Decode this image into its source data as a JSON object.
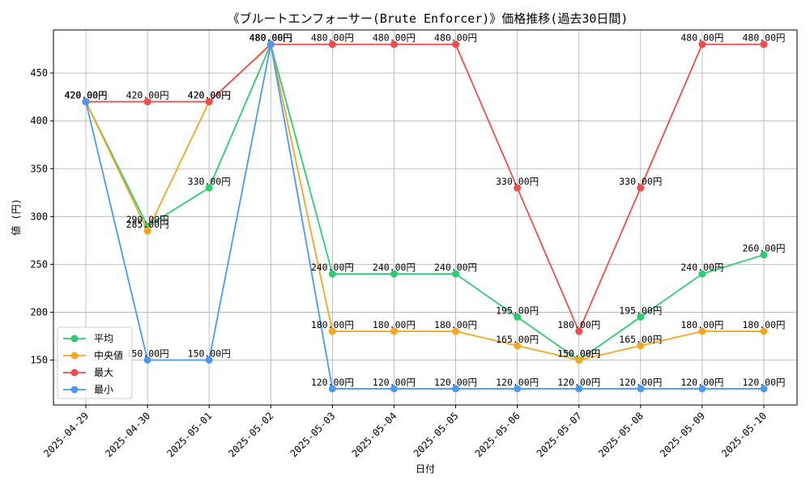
{
  "chart_data": {
    "type": "line",
    "title": "《ブルートエンフォーサー(Brute Enforcer)》価格推移(過去30日間)",
    "xlabel": "日付",
    "ylabel": "値 (円)",
    "categories": [
      "2025-04-29",
      "2025-04-30",
      "2025-05-01",
      "2025-05-02",
      "2025-05-03",
      "2025-05-04",
      "2025-05-05",
      "2025-05-06",
      "2025-05-07",
      "2025-05-08",
      "2025-05-09",
      "2025-05-10"
    ],
    "ylim": [
      103,
      495
    ],
    "yticks": [
      150,
      200,
      250,
      300,
      350,
      400,
      450
    ],
    "grid": true,
    "legend_position": "lower-left",
    "label_suffix": "円",
    "series": [
      {
        "name": "平均",
        "color": "#2ecc71",
        "values": [
          420,
          290,
          330,
          480,
          240,
          240,
          240,
          195,
          150,
          195,
          240,
          260
        ]
      },
      {
        "name": "中央値",
        "color": "#f5a623",
        "values": [
          420,
          285,
          420,
          480,
          180,
          180,
          180,
          165,
          150,
          165,
          180,
          180
        ]
      },
      {
        "name": "最大",
        "color": "#ef4d4d",
        "values": [
          420,
          420,
          420,
          480,
          480,
          480,
          480,
          330,
          180,
          330,
          480,
          480
        ]
      },
      {
        "name": "最小",
        "color": "#4a9af5",
        "values": [
          420,
          150,
          150,
          480,
          120,
          120,
          120,
          120,
          120,
          120,
          120,
          120
        ]
      }
    ]
  }
}
